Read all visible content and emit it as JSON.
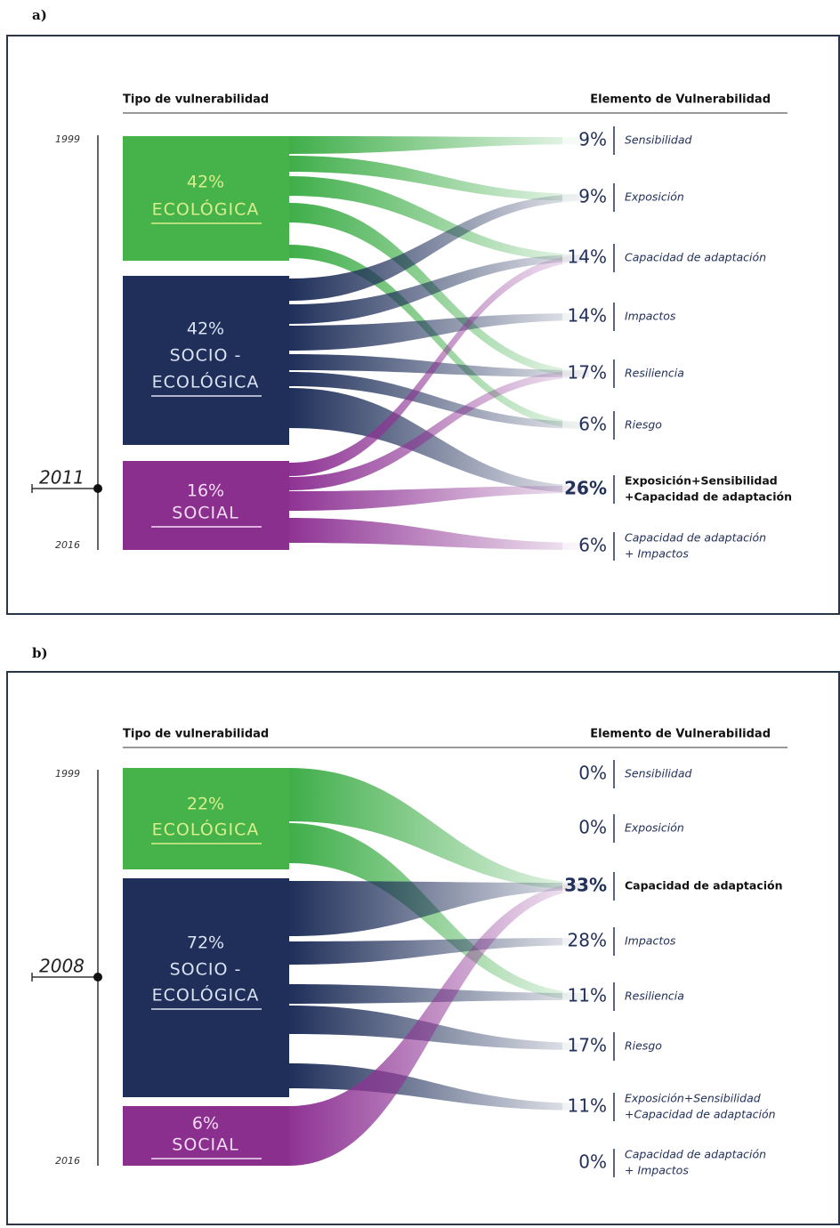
{
  "panels": [
    {
      "label": "a)",
      "header_left": "Tipo de vulnerabilidad",
      "header_right": "Elemento de Vulnerabilidad",
      "timeline": {
        "start": "1999",
        "end": "2016",
        "year": "2011"
      },
      "types": [
        {
          "percent": "42%",
          "name_lines": [
            "ECOLÓGICA"
          ]
        },
        {
          "percent": "42%",
          "name_lines": [
            "SOCIO -",
            "ECOLÓGICA"
          ]
        },
        {
          "percent": "16%",
          "name_lines": [
            "SOCIAL"
          ]
        }
      ],
      "elements": [
        {
          "percent": "9%",
          "lines": [
            "Sensibilidad"
          ]
        },
        {
          "percent": "9%",
          "lines": [
            "Exposición"
          ]
        },
        {
          "percent": "14%",
          "lines": [
            "Capacidad de adaptación"
          ]
        },
        {
          "percent": "14%",
          "lines": [
            "Impactos"
          ]
        },
        {
          "percent": "17%",
          "lines": [
            "Resiliencia"
          ]
        },
        {
          "percent": "6%",
          "lines": [
            "Riesgo"
          ]
        },
        {
          "percent": "26%",
          "lines": [
            "Exposición+Sensibilidad",
            "+Capacidad de adaptación"
          ],
          "emphasis": true
        },
        {
          "percent": "6%",
          "lines": [
            "Capacidad de adaptación",
            "+ Impactos"
          ]
        }
      ]
    },
    {
      "label": "b)",
      "header_left": "Tipo de vulnerabilidad",
      "header_right": "Elemento de Vulnerabilidad",
      "timeline": {
        "start": "1999",
        "end": "2016",
        "year": "2008"
      },
      "types": [
        {
          "percent": "22%",
          "name_lines": [
            "ECOLÓGICA"
          ]
        },
        {
          "percent": "72%",
          "name_lines": [
            "SOCIO -",
            "ECOLÓGICA"
          ]
        },
        {
          "percent": "6%",
          "name_lines": [
            "SOCIAL"
          ]
        }
      ],
      "elements": [
        {
          "percent": "0%",
          "lines": [
            "Sensibilidad"
          ]
        },
        {
          "percent": "0%",
          "lines": [
            "Exposición"
          ]
        },
        {
          "percent": "33%",
          "lines": [
            "Capacidad de adaptación"
          ],
          "emphasis": true
        },
        {
          "percent": "28%",
          "lines": [
            "Impactos"
          ]
        },
        {
          "percent": "11%",
          "lines": [
            "Resiliencia"
          ]
        },
        {
          "percent": "17%",
          "lines": [
            "Riesgo"
          ]
        },
        {
          "percent": "11%",
          "lines": [
            "Exposición+Sensibilidad",
            "+Capacidad de adaptación"
          ]
        },
        {
          "percent": "0%",
          "lines": [
            "Capacidad de adaptación",
            "+ Impactos"
          ]
        }
      ]
    }
  ]
}
